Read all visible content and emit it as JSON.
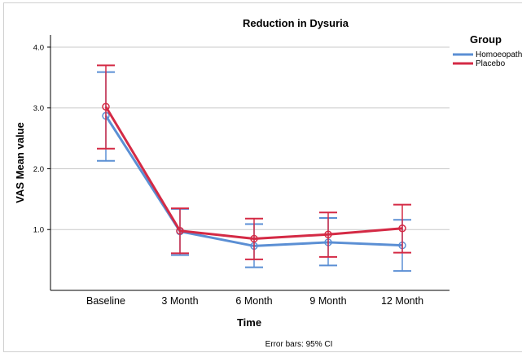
{
  "chart_data": {
    "type": "line",
    "title": "Reduction in Dysuria",
    "xlabel": "Time",
    "ylabel": "VAS Mean value",
    "categories": [
      "Baseline",
      "3 Month",
      "6 Month",
      "9 Month",
      "12 Month"
    ],
    "ylim": [
      0.0,
      4.2
    ],
    "yticks": [
      "1.0",
      "2.0",
      "3.0",
      "4.0"
    ],
    "grid": "horizontal",
    "legend": {
      "title": "Group",
      "position": "top-right"
    },
    "footnote": "Error bars: 95% CI",
    "series": [
      {
        "name": "Homoeopathy",
        "color": "#5b8fd4",
        "marker": "open-circle",
        "values": [
          2.87,
          0.97,
          0.73,
          0.79,
          0.74
        ],
        "ci_low": [
          2.13,
          0.58,
          0.38,
          0.41,
          0.32
        ],
        "ci_high": [
          3.59,
          1.34,
          1.09,
          1.19,
          1.16
        ]
      },
      {
        "name": "Placebo",
        "color": "#d42a45",
        "marker": "open-circle",
        "values": [
          3.02,
          0.98,
          0.85,
          0.92,
          1.02
        ],
        "ci_low": [
          2.33,
          0.61,
          0.51,
          0.55,
          0.62
        ],
        "ci_high": [
          3.7,
          1.35,
          1.18,
          1.28,
          1.41
        ]
      }
    ]
  }
}
